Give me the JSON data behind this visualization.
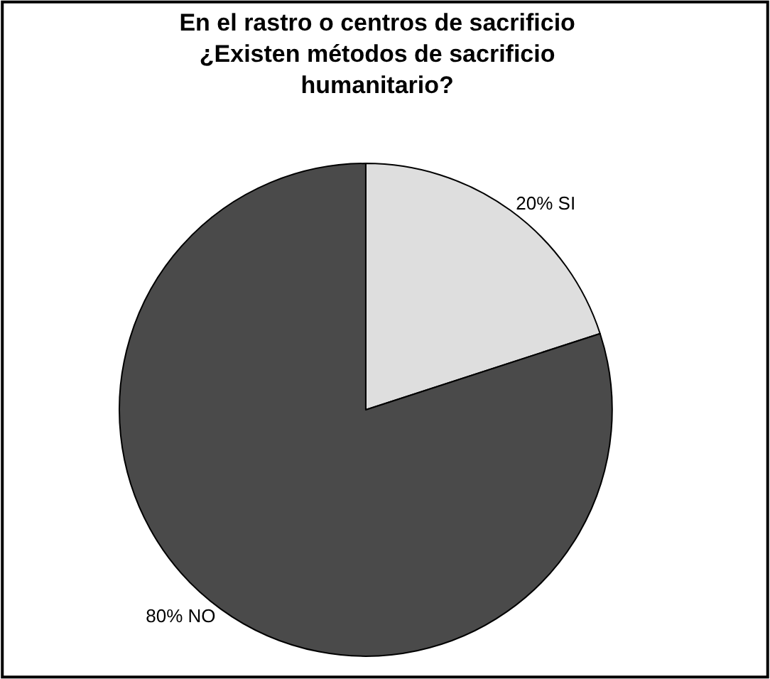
{
  "chart_data": {
    "type": "pie",
    "title": "En el rastro o centros de sacrificio\n¿Existen métodos de sacrificio\nhumanitario?",
    "categories": [
      "SI",
      "NO"
    ],
    "values": [
      20,
      80
    ],
    "colors": [
      "#dedede",
      "#4a4a4a"
    ],
    "value_labels": [
      "20%",
      "80%"
    ],
    "legend": false
  }
}
